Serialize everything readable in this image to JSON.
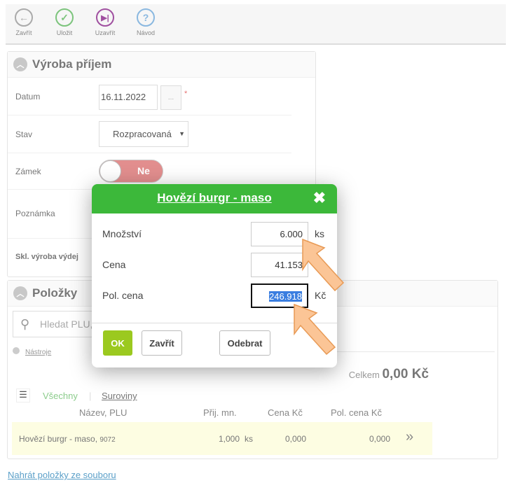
{
  "toolbar": {
    "items": [
      {
        "label": "Zavřít",
        "icon": "arrow-left-icon",
        "color": "#aaaaaa"
      },
      {
        "label": "Uložit",
        "icon": "check-icon",
        "color": "#7cc47c"
      },
      {
        "label": "Uzavřít",
        "icon": "skip-forward-icon",
        "color": "#a050a0"
      },
      {
        "label": "Návod",
        "icon": "question-icon",
        "color": "#8ab8e0"
      }
    ]
  },
  "form": {
    "title": "Výroba příjem",
    "datum_label": "Datum",
    "datum_value": "16.11.2022",
    "datum_picker": "...",
    "required_mark": "*",
    "stav_label": "Stav",
    "stav_value": "Rozpracovaná",
    "zamek_label": "Zámek",
    "zamek_value": "Ne",
    "poznamka_label": "Poznámka",
    "skl_label": "Skl. výroba výdej"
  },
  "items": {
    "title": "Položky",
    "search_placeholder": "Hledat PLU,",
    "tools_label": "Nástroje",
    "total_label": "Celkem",
    "total_value": "0,00 Kč",
    "filters": [
      "Všechny",
      "Suroviny"
    ],
    "filter_sep": "|",
    "columns": [
      "Název, PLU",
      "Přij. mn.",
      "Cena Kč",
      "Pol. cena Kč"
    ],
    "rows": [
      {
        "name": "Hovězí burgr - maso,",
        "plu": "9072",
        "qty": "1,000",
        "unit": "ks",
        "price": "0,000",
        "total": "0,000"
      }
    ],
    "upload_link": "Nahrát položky ze souboru"
  },
  "modal": {
    "title": "Hovězí burgr - maso",
    "fields": [
      {
        "label": "Množství",
        "value": "6.000",
        "unit": "ks"
      },
      {
        "label": "Cena",
        "value": "41.153",
        "unit": ""
      },
      {
        "label": "Pol. cena",
        "value": "246.918",
        "unit": "Kč"
      }
    ],
    "ok": "OK",
    "close": "Zavřít",
    "remove": "Odebrat",
    "header_color": "#3cb83a",
    "ok_color": "#9bc91f"
  }
}
